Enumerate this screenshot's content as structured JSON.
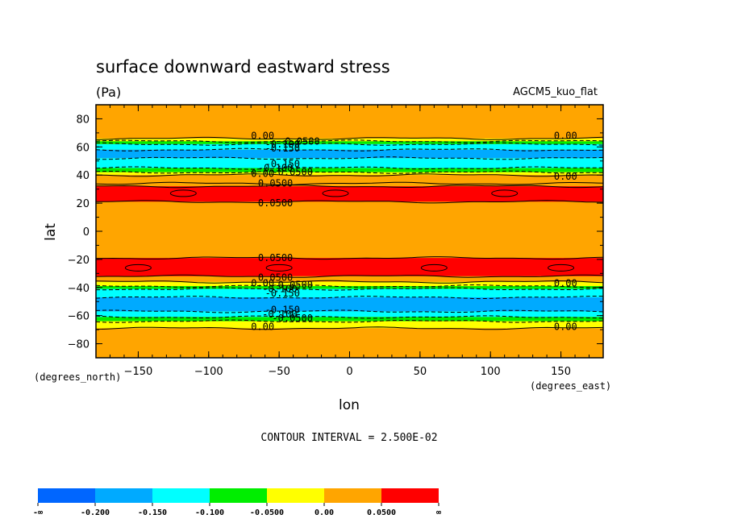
{
  "chart_data": {
    "type": "heatmap",
    "title": "surface downward eastward stress",
    "units": "(Pa)",
    "dataset": "AGCM5_kuo_flat",
    "xlabel": "lon",
    "ylabel": "lat",
    "x_units": "(degrees_east)",
    "y_units": "(degrees_north)",
    "xlim": [
      -180,
      180
    ],
    "ylim": [
      -90,
      90
    ],
    "x_ticks": [
      -150,
      -100,
      -50,
      0,
      50,
      100,
      150
    ],
    "y_ticks": [
      -80,
      -60,
      -40,
      -20,
      0,
      20,
      40,
      60,
      80
    ],
    "x_tick_labels": [
      "−150",
      "−100",
      "−50",
      "0",
      "50",
      "100",
      "150"
    ],
    "y_tick_labels": [
      "−80",
      "−60",
      "−40",
      "−20",
      "0",
      "20",
      "40",
      "60",
      "80"
    ],
    "contour_interval_text": "CONTOUR INTERVAL = 2.500E-02",
    "levels": [
      "-inf",
      -0.2,
      -0.15,
      -0.1,
      -0.05,
      0.0,
      0.05,
      "inf"
    ],
    "colorbar": [
      {
        "from": "-inf",
        "to": -0.2,
        "color": "#0066ff"
      },
      {
        "from": -0.2,
        "to": -0.15,
        "color": "#00aaff"
      },
      {
        "from": -0.15,
        "to": -0.1,
        "color": "#00ffff"
      },
      {
        "from": -0.1,
        "to": -0.05,
        "color": "#00ee00"
      },
      {
        "from": -0.05,
        "to": 0.0,
        "color": "#ffff00"
      },
      {
        "from": 0.0,
        "to": 0.05,
        "color": "#ffa500"
      },
      {
        "from": 0.05,
        "to": "inf",
        "color": "#ff0000"
      }
    ],
    "colorbar_labels": [
      "-∞",
      "-0.200",
      "-0.150",
      "-0.100",
      "-0.0500",
      "0.00",
      "0.0500",
      "∞"
    ],
    "zonal_bands": [
      {
        "lat_from": 66,
        "lat_to": 90,
        "level": "0 to 0.05"
      },
      {
        "lat_from": 64,
        "lat_to": 66,
        "level": "-0.05 to 0"
      },
      {
        "lat_from": 62,
        "lat_to": 64,
        "level": "-0.1 to -0.05"
      },
      {
        "lat_from": 58,
        "lat_to": 62,
        "level": "-0.15 to -0.1"
      },
      {
        "lat_from": 52,
        "lat_to": 58,
        "level": "-0.2 to -0.15"
      },
      {
        "lat_from": 45,
        "lat_to": 52,
        "level": "-0.15 to -0.1"
      },
      {
        "lat_from": 42,
        "lat_to": 45,
        "level": "-0.1 to -0.05"
      },
      {
        "lat_from": 40,
        "lat_to": 42,
        "level": "-0.05 to 0"
      },
      {
        "lat_from": 34,
        "lat_to": 40,
        "level": "0 to 0.05"
      },
      {
        "lat_from": 21,
        "lat_to": 32,
        "level": "> 0.05"
      },
      {
        "lat_from": -19,
        "lat_to": 21,
        "level": "0 to 0.05"
      },
      {
        "lat_from": -32,
        "lat_to": -19,
        "level": "> 0.05"
      },
      {
        "lat_from": -36,
        "lat_to": -32,
        "level": "0 to 0.05"
      },
      {
        "lat_from": -39,
        "lat_to": -36,
        "level": "-0.05 to 0"
      },
      {
        "lat_from": -41,
        "lat_to": -39,
        "level": "-0.1 to -0.05"
      },
      {
        "lat_from": -47,
        "lat_to": -41,
        "level": "-0.15 to -0.1"
      },
      {
        "lat_from": -57,
        "lat_to": -47,
        "level": "-0.2 to -0.15"
      },
      {
        "lat_from": -61,
        "lat_to": -57,
        "level": "-0.15 to -0.1"
      },
      {
        "lat_from": -64,
        "lat_to": -61,
        "level": "-0.1 to -0.05"
      },
      {
        "lat_from": -69,
        "lat_to": -64,
        "level": "-0.05 to 0"
      },
      {
        "lat_from": -90,
        "lat_to": -69,
        "level": "0 to 0.05"
      }
    ],
    "contour_labels": [
      {
        "text": "0.00",
        "lon": -70,
        "lat": 68
      },
      {
        "text": "-0.0500",
        "lon": -50,
        "lat": 64
      },
      {
        "text": "-0.100",
        "lon": -60,
        "lat": 62
      },
      {
        "text": "-0.150",
        "lon": -60,
        "lat": 59
      },
      {
        "text": "-0.150",
        "lon": -60,
        "lat": 48
      },
      {
        "text": "-0.100",
        "lon": -65,
        "lat": 45
      },
      {
        "text": "0.00",
        "lon": -70,
        "lat": 41
      },
      {
        "text": "-0.0500",
        "lon": -55,
        "lat": 42
      },
      {
        "text": "0.0500",
        "lon": -65,
        "lat": 34
      },
      {
        "text": "0.0500",
        "lon": -65,
        "lat": 20
      },
      {
        "text": "0.00",
        "lon": 145,
        "lat": 68
      },
      {
        "text": "0.00",
        "lon": 145,
        "lat": 39
      },
      {
        "text": "0.0500",
        "lon": -65,
        "lat": -19
      },
      {
        "text": "0.0500",
        "lon": -65,
        "lat": -33
      },
      {
        "text": "0.00",
        "lon": -70,
        "lat": -37
      },
      {
        "text": "-0.0500",
        "lon": -55,
        "lat": -38
      },
      {
        "text": "-0.100",
        "lon": -62,
        "lat": -41
      },
      {
        "text": "-0.150",
        "lon": -60,
        "lat": -44
      },
      {
        "text": "-0.150",
        "lon": -60,
        "lat": -56
      },
      {
        "text": "-0.100",
        "lon": -62,
        "lat": -59
      },
      {
        "text": "-0.0500",
        "lon": -55,
        "lat": -62
      },
      {
        "text": "0.00",
        "lon": -70,
        "lat": -68
      },
      {
        "text": "0.00",
        "lon": 145,
        "lat": -37
      },
      {
        "text": "0.00",
        "lon": 145,
        "lat": -68
      }
    ]
  }
}
